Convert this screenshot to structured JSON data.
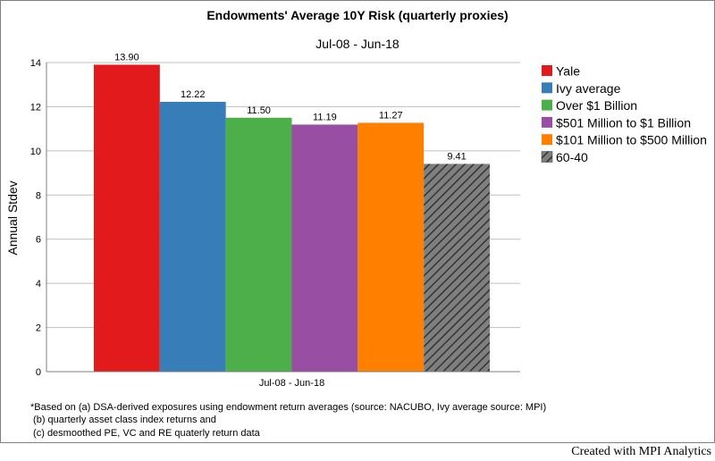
{
  "chart_data": {
    "type": "bar",
    "title": "Endowments' Average 10Y Risk (quarterly proxies)",
    "subtitle": "Jul-08 - Jun-18",
    "ylabel": "Annual Stdev",
    "xlabel": "",
    "categories": [
      "Jul-08 - Jun-18"
    ],
    "ylim": [
      0,
      14
    ],
    "yticks": [
      0,
      2,
      4,
      6,
      8,
      10,
      12,
      14
    ],
    "grid": true,
    "legend_position": "right",
    "series": [
      {
        "name": "Yale",
        "values": [
          13.9
        ],
        "label": "13.90",
        "color": "#e31a1c",
        "pattern": "solid"
      },
      {
        "name": "Ivy average",
        "values": [
          12.22
        ],
        "label": "12.22",
        "color": "#377eb8",
        "pattern": "solid"
      },
      {
        "name": "Over $1 Billion",
        "values": [
          11.5
        ],
        "label": "11.50",
        "color": "#4daf4a",
        "pattern": "solid"
      },
      {
        "name": "$501 Million to $1 Billion",
        "values": [
          11.19
        ],
        "label": "11.19",
        "color": "#984ea3",
        "pattern": "solid"
      },
      {
        "name": "$101 Million to $500 Million",
        "values": [
          11.27
        ],
        "label": "11.27",
        "color": "#ff7f00",
        "pattern": "solid"
      },
      {
        "name": "60-40",
        "values": [
          9.41
        ],
        "label": "9.41",
        "color": "#7f7f7f",
        "pattern": "hatch"
      }
    ]
  },
  "footnotes": [
    "*Based on (a) DSA-derived exposures using endowment return averages (source: NACUBO, Ivy average source: MPI)",
    " (b) quarterly asset class index returns and",
    " (c) desmoothed PE, VC and RE quaterly return data"
  ],
  "credit": "Created with MPI Analytics"
}
